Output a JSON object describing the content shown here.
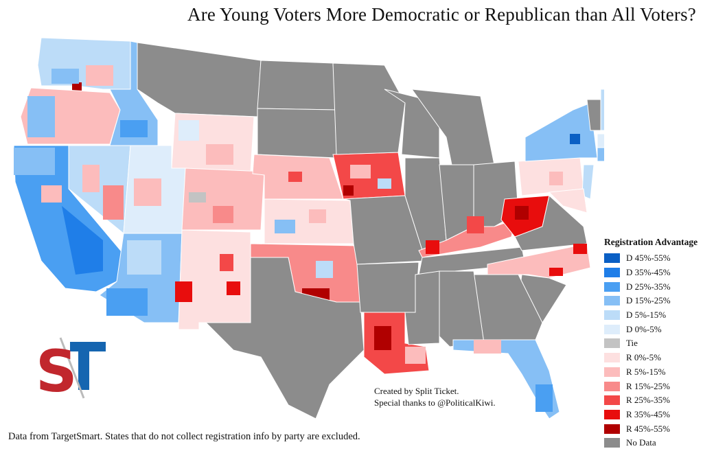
{
  "title": "Are Young Voters More Democratic or Republican than All Voters?",
  "legend": {
    "title": "Registration Advantage",
    "items": [
      {
        "label": "D 45%-55%",
        "color": "#0a5fc4"
      },
      {
        "label": "D 35%-45%",
        "color": "#1f7ee8"
      },
      {
        "label": "D 25%-35%",
        "color": "#4a9ff2"
      },
      {
        "label": "D 15%-25%",
        "color": "#86bff5"
      },
      {
        "label": "D 5%-15%",
        "color": "#bcdcf8"
      },
      {
        "label": "D 0%-5%",
        "color": "#deedfb"
      },
      {
        "label": "Tie",
        "color": "#c3c3c3"
      },
      {
        "label": "R 0%-5%",
        "color": "#fde0e0"
      },
      {
        "label": "R 5%-15%",
        "color": "#fcbcbc"
      },
      {
        "label": "R 15%-25%",
        "color": "#f88a8a"
      },
      {
        "label": "R 25%-35%",
        "color": "#f34848"
      },
      {
        "label": "R 35%-45%",
        "color": "#e80d0d"
      },
      {
        "label": "R 45%-55%",
        "color": "#b00000"
      },
      {
        "label": "No Data",
        "color": "#8c8c8c"
      }
    ]
  },
  "credits": {
    "line1": "Created by Split Ticket.",
    "line2": "Special thanks to @PoliticalKiwi."
  },
  "source_note": "Data from TargetSmart. States that do not collect registration info by party are excluded.",
  "logo": {
    "left_letter": "S",
    "right_letter": "T",
    "left_color": "#c1272d",
    "right_color": "#1565b0"
  },
  "colors": {
    "no_data": "#8c8c8c",
    "border": "#ffffff"
  }
}
